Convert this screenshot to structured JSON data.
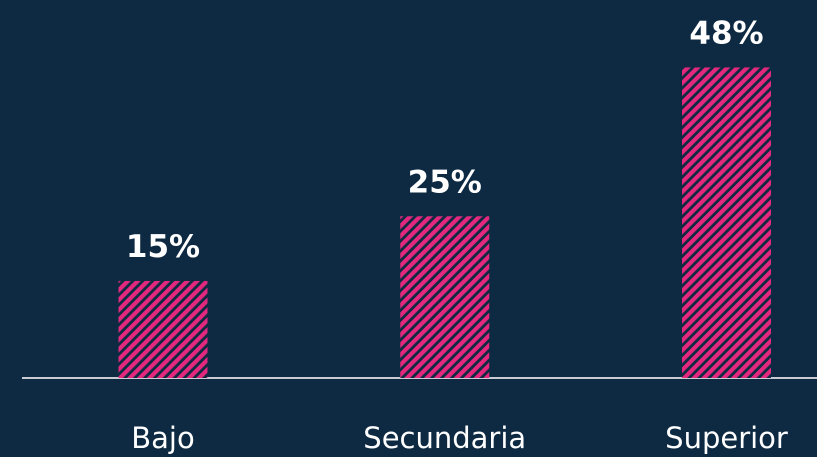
{
  "chart_data": {
    "type": "bar",
    "categories": [
      "Bajo",
      "Secundaria",
      "Superior"
    ],
    "values": [
      15,
      25,
      48
    ],
    "value_labels": [
      "15%",
      "25%",
      "48%"
    ],
    "color": "#e3287d"
  }
}
